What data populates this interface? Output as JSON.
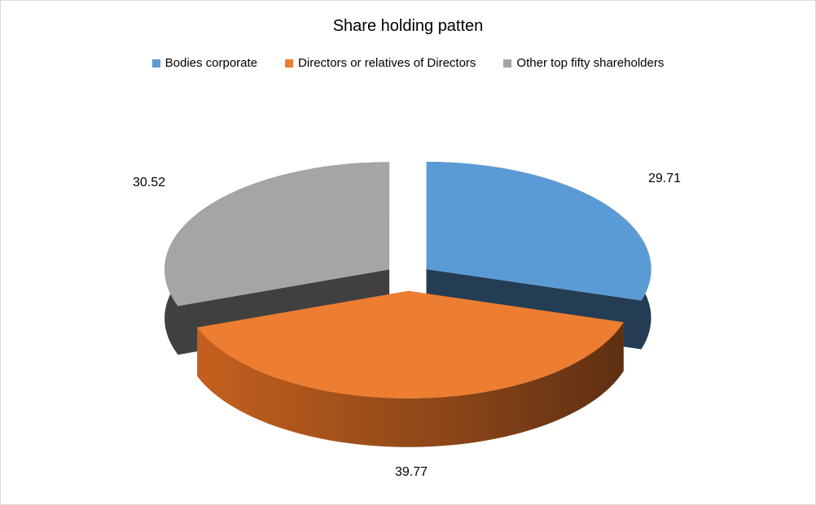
{
  "chart_data": {
    "type": "pie",
    "title": "Share holding patten",
    "categories": [
      "Bodies corporate",
      "Directors or relatives of Directors",
      "Other top fifty shareholders"
    ],
    "values": [
      29.71,
      39.77,
      30.52
    ],
    "data_labels": [
      "29.71",
      "39.77",
      "30.52"
    ],
    "colors": [
      "#5b9bd5",
      "#ed7d31",
      "#a5a5a5"
    ],
    "style": "3d-exploded",
    "legend_position": "top"
  }
}
